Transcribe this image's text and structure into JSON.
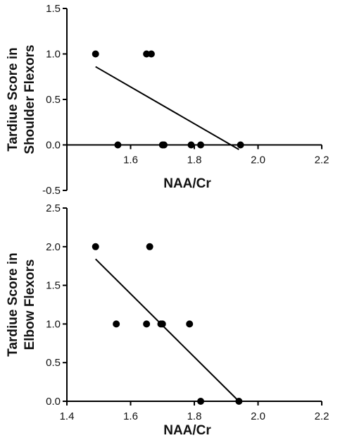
{
  "chart_data": [
    {
      "type": "scatter",
      "title": "",
      "xlabel": "NAA/Cr",
      "ylabel_lines": [
        "Tardiue Score in",
        "Shoulder Flexors"
      ],
      "xlim": [
        1.4,
        2.2
      ],
      "ylim": [
        -0.5,
        1.5
      ],
      "x_ticks": [
        "1.6",
        "1.8",
        "2.0",
        "2.2"
      ],
      "y_ticks": [
        "-0.5",
        "0.0",
        "0.5",
        "1.0",
        "1.5"
      ],
      "x_axis_crosses_at_y": 0.0,
      "grid": false,
      "series": [
        {
          "points": [
            {
              "x": 1.49,
              "y": 1.0
            },
            {
              "x": 1.65,
              "y": 1.0
            },
            {
              "x": 1.665,
              "y": 1.0
            },
            {
              "x": 1.56,
              "y": 0.0
            },
            {
              "x": 1.7,
              "y": 0.0
            },
            {
              "x": 1.705,
              "y": 0.0
            },
            {
              "x": 1.79,
              "y": 0.0
            },
            {
              "x": 1.82,
              "y": 0.0
            },
            {
              "x": 1.945,
              "y": 0.0
            }
          ]
        }
      ],
      "fit_line": {
        "x": [
          1.49,
          1.94
        ],
        "y": [
          0.86,
          -0.05
        ]
      }
    },
    {
      "type": "scatter",
      "title": "",
      "xlabel": "NAA/Cr",
      "ylabel_lines": [
        "Tardiue Score in",
        "Elbow Flexors"
      ],
      "xlim": [
        1.4,
        2.2
      ],
      "ylim": [
        0.0,
        2.5
      ],
      "x_ticks": [
        "1.4",
        "1.6",
        "1.8",
        "2.0",
        "2.2"
      ],
      "y_ticks": [
        "0.0",
        "0.5",
        "1.0",
        "1.5",
        "2.0",
        "2.5"
      ],
      "x_axis_crosses_at_y": 0.0,
      "grid": false,
      "series": [
        {
          "points": [
            {
              "x": 1.49,
              "y": 2.0
            },
            {
              "x": 1.66,
              "y": 2.0
            },
            {
              "x": 1.555,
              "y": 1.0
            },
            {
              "x": 1.65,
              "y": 1.0
            },
            {
              "x": 1.695,
              "y": 1.0
            },
            {
              "x": 1.7,
              "y": 1.0
            },
            {
              "x": 1.785,
              "y": 1.0
            },
            {
              "x": 1.82,
              "y": 0.0
            },
            {
              "x": 1.94,
              "y": 0.0
            }
          ]
        }
      ],
      "fit_line": {
        "x": [
          1.49,
          1.94
        ],
        "y": [
          1.84,
          0.0
        ]
      }
    }
  ]
}
